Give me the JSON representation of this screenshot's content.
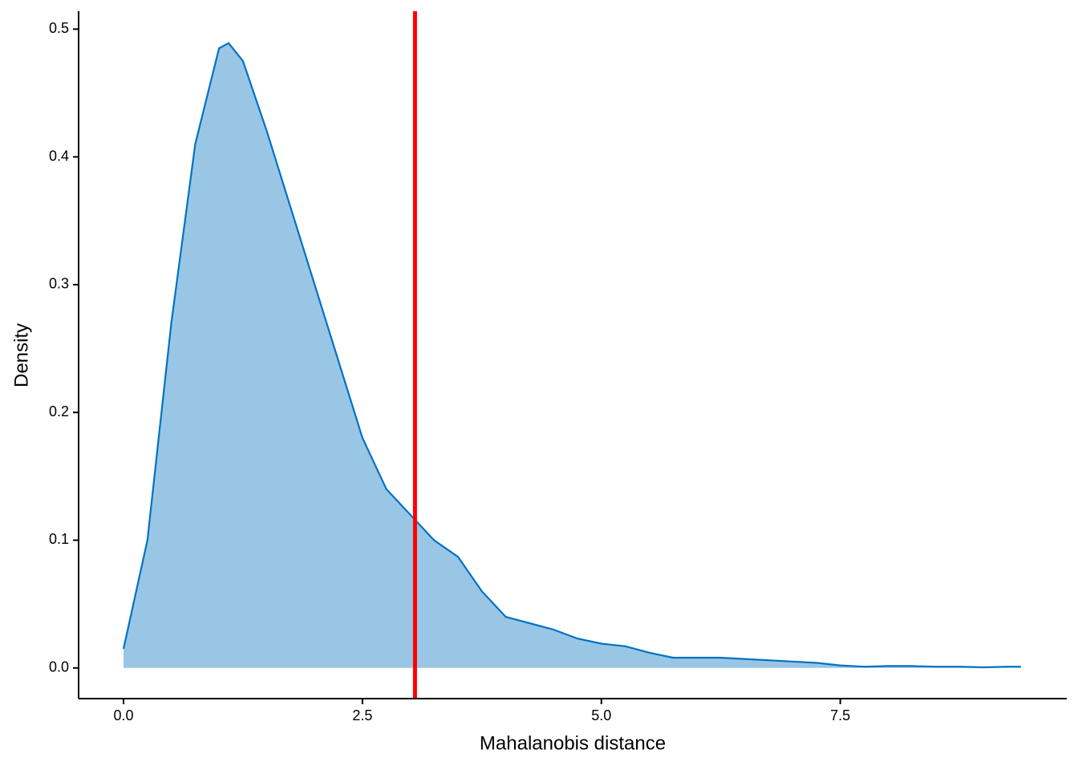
{
  "chart_data": {
    "type": "density",
    "x_label": "Mahalanobis distance",
    "y_label": "Density",
    "x": [
      0,
      0.25,
      0.5,
      0.75,
      1.0,
      1.1,
      1.25,
      1.5,
      1.75,
      2.0,
      2.25,
      2.5,
      2.75,
      3.0,
      3.25,
      3.5,
      3.75,
      4.0,
      4.25,
      4.5,
      4.75,
      5.0,
      5.25,
      5.5,
      5.75,
      6.0,
      6.25,
      6.5,
      6.75,
      7.0,
      7.25,
      7.5,
      7.75,
      8.0,
      8.25,
      8.5,
      8.75,
      9.0,
      9.25,
      9.39
    ],
    "values": [
      0.015,
      0.1,
      0.27,
      0.41,
      0.485,
      0.489,
      0.475,
      0.42,
      0.36,
      0.3,
      0.24,
      0.18,
      0.14,
      0.12,
      0.1,
      0.087,
      0.06,
      0.04,
      0.035,
      0.03,
      0.023,
      0.019,
      0.017,
      0.012,
      0.008,
      0.008,
      0.008,
      0.007,
      0.006,
      0.005,
      0.004,
      0.002,
      0.001,
      0.0015,
      0.0015,
      0.001,
      0.001,
      0.0005,
      0.001,
      0.001
    ],
    "line_color": "#0072c3",
    "fill_color": "#9ac6e6",
    "vline": 3.05,
    "vline_color": "#ff0000",
    "xlim": [
      -0.47,
      9.87
    ],
    "ylim": [
      -0.024,
      0.514
    ],
    "xticks": [
      {
        "value": 0,
        "label": "0.0"
      },
      2.5,
      {
        "value": 5,
        "label": "5.0"
      },
      7.5
    ],
    "yticks": [
      {
        "value": 0,
        "label": "0.0"
      },
      0.1,
      0.2,
      0.3,
      0.4,
      0.5
    ],
    "grid": false
  }
}
